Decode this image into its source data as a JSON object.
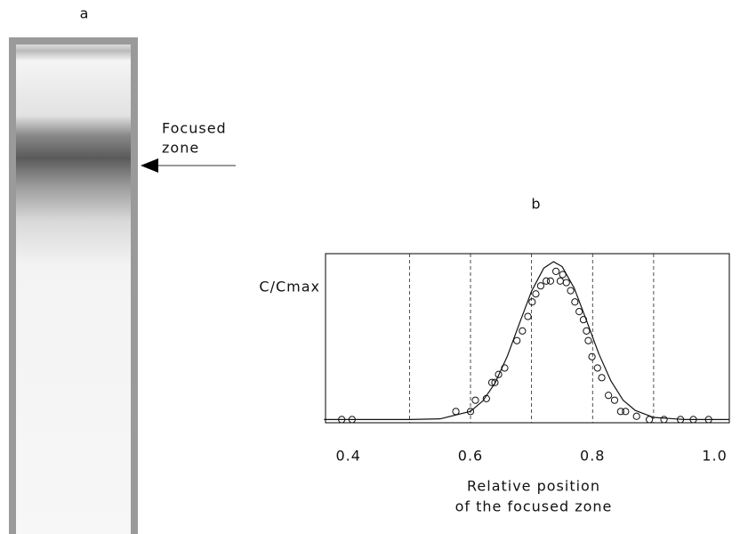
{
  "figure": {
    "panel_label": "a",
    "annotation": [
      "Focused",
      "zone"
    ]
  },
  "chart_data": {
    "type": "line",
    "title": "b",
    "ylabel": "C/Cmax",
    "xlabel": [
      "Relative position",
      "of the focused zone"
    ],
    "xlim": [
      0.3625,
      1.024
    ],
    "ylim": [
      0,
      1.05
    ],
    "xticks": [
      0.4,
      0.6,
      0.8,
      {
        "value": 1,
        "label": "1.0"
      }
    ],
    "xgrid": [
      0.5,
      0.6,
      0.7,
      0.8,
      0.9
    ],
    "series": [
      {
        "type": "line",
        "color": "#111",
        "x": [
          0.36,
          0.5,
          0.55,
          0.6,
          0.62,
          0.64,
          0.66,
          0.68,
          0.7,
          0.72,
          0.736,
          0.75,
          0.77,
          0.79,
          0.81,
          0.83,
          0.85,
          0.87,
          0.9,
          0.95,
          1.024
        ],
        "values": [
          0.02,
          0.02,
          0.024,
          0.071,
          0.135,
          0.245,
          0.41,
          0.615,
          0.817,
          0.96,
          1.0,
          0.97,
          0.835,
          0.635,
          0.43,
          0.26,
          0.14,
          0.076,
          0.033,
          0.02,
          0.02
        ]
      },
      {
        "type": "scatter",
        "color": "#111",
        "x": [
          0.389,
          0.406,
          0.576,
          0.6,
          0.608,
          0.626,
          0.635,
          0.64,
          0.646,
          0.656,
          0.676,
          0.685,
          0.694,
          0.701,
          0.707,
          0.715,
          0.724,
          0.731,
          0.74,
          0.747,
          0.751,
          0.757,
          0.764,
          0.771,
          0.778,
          0.785,
          0.79,
          0.793,
          0.799,
          0.808,
          0.815,
          0.826,
          0.836,
          0.846,
          0.854,
          0.872,
          0.893,
          0.917,
          0.944,
          0.965,
          0.99
        ],
        "values": [
          0.02,
          0.02,
          0.07,
          0.07,
          0.14,
          0.15,
          0.25,
          0.25,
          0.3,
          0.34,
          0.51,
          0.57,
          0.66,
          0.75,
          0.8,
          0.85,
          0.88,
          0.88,
          0.94,
          0.88,
          0.92,
          0.87,
          0.82,
          0.75,
          0.69,
          0.64,
          0.57,
          0.51,
          0.41,
          0.34,
          0.28,
          0.17,
          0.14,
          0.07,
          0.07,
          0.04,
          0.02,
          0.02,
          0.02,
          0.02,
          0.02
        ]
      }
    ]
  }
}
